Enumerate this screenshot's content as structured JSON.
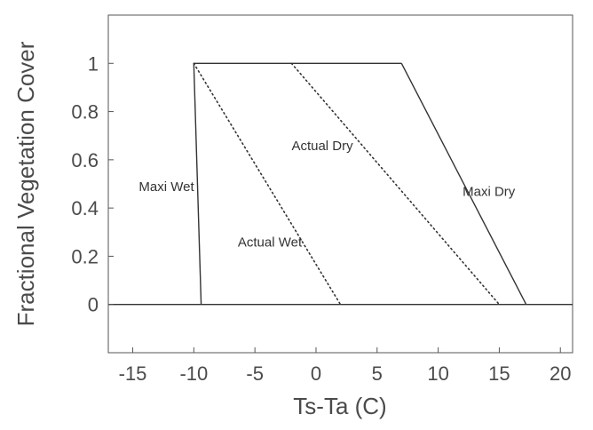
{
  "chart_data": {
    "type": "line",
    "title": "",
    "xlabel": "Ts-Ta (C)",
    "ylabel": "Fractional Vegetation Cover",
    "xlim": [
      -17,
      21
    ],
    "ylim": [
      -0.2,
      1.2
    ],
    "x_ticks": [
      -15,
      -10,
      -5,
      0,
      5,
      10,
      15,
      20
    ],
    "y_ticks": [
      0,
      0.2,
      0.4,
      0.6,
      0.8,
      1
    ],
    "x_tick_labels": [
      "-15",
      "-10",
      "-5",
      "0",
      "5",
      "10",
      "15",
      "20"
    ],
    "y_tick_labels": [
      "0",
      "0.2",
      "0.4",
      "0.6",
      "0.8",
      "1"
    ],
    "grid": false,
    "series": [
      {
        "name": "Maxi Wet",
        "style": "solid",
        "x": [
          -10.0,
          -9.4
        ],
        "y": [
          1,
          0
        ]
      },
      {
        "name": "Maxi Dry",
        "style": "solid",
        "x": [
          7.0,
          17.2
        ],
        "y": [
          1,
          0
        ]
      },
      {
        "name": "Actual Wet",
        "style": "dotted",
        "x": [
          -10.0,
          2.0
        ],
        "y": [
          1,
          0
        ]
      },
      {
        "name": "Actual Dry",
        "style": "dotted",
        "x": [
          -2.0,
          15.0
        ],
        "y": [
          1,
          0
        ]
      },
      {
        "name": "",
        "style": "solid",
        "x": [
          -10.0,
          7.0
        ],
        "y": [
          1,
          1
        ]
      },
      {
        "name": "",
        "style": "solid",
        "x": [
          -17,
          21
        ],
        "y": [
          0,
          0
        ]
      }
    ],
    "annotations": [
      {
        "text": "Maxi Wet",
        "x": -14.5,
        "y": 0.47
      },
      {
        "text": "Actual Wet",
        "x": -6.4,
        "y": 0.24
      },
      {
        "text": "Actual Dry",
        "x": -2.0,
        "y": 0.64
      },
      {
        "text": "Maxi Dry",
        "x": 12.0,
        "y": 0.45
      }
    ],
    "colors": {
      "line": "#333333",
      "frame": "#555555",
      "text": "#4a4a4a"
    }
  }
}
